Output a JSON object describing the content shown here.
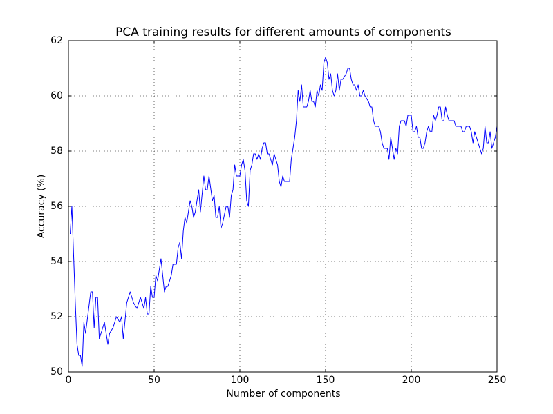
{
  "chart_data": {
    "type": "line",
    "title": "PCA training results for different amounts of components",
    "xlabel": "Number of components",
    "ylabel": "Accuracy (%)",
    "color": "#0000ff",
    "grid": true,
    "xlim": [
      0,
      250
    ],
    "xticks": [
      0,
      50,
      100,
      150,
      200,
      250
    ],
    "ylim": [
      50,
      62
    ],
    "yticks": [
      50,
      52,
      54,
      56,
      58,
      60,
      62
    ],
    "x": [
      1,
      2,
      4,
      5,
      6,
      7,
      8,
      9,
      10,
      12,
      13,
      14,
      15,
      16,
      17,
      18,
      19,
      21,
      22,
      23,
      24,
      26,
      28,
      30,
      31,
      32,
      34,
      36,
      38,
      40,
      42,
      44,
      45,
      46,
      47,
      48,
      49,
      50,
      51,
      52,
      54,
      56,
      57,
      58,
      60,
      61,
      63,
      64,
      65,
      66,
      67,
      68,
      69,
      71,
      72,
      73,
      74,
      76,
      77,
      79,
      80,
      81,
      82,
      84,
      85,
      86,
      87,
      88,
      89,
      90,
      92,
      93,
      94,
      95,
      96,
      97,
      98,
      100,
      101,
      102,
      103,
      104,
      105,
      106,
      107,
      108,
      109,
      110,
      111,
      112,
      113,
      114,
      115,
      116,
      117,
      119,
      120,
      122,
      123,
      124,
      125,
      126,
      129,
      130,
      132,
      133,
      134,
      135,
      136,
      137,
      139,
      140,
      141,
      142,
      143,
      144,
      145,
      146,
      147,
      148,
      149,
      150,
      151,
      152,
      153,
      154,
      155,
      156,
      157,
      158,
      159,
      160,
      162,
      163,
      164,
      165,
      166,
      167,
      168,
      169,
      170,
      171,
      172,
      173,
      175,
      176,
      177,
      178,
      179,
      181,
      182,
      183,
      184,
      186,
      187,
      188,
      189,
      190,
      191,
      192,
      193,
      194,
      196,
      197,
      198,
      200,
      201,
      202,
      203,
      204,
      205,
      206,
      207,
      208,
      209,
      210,
      211,
      212,
      213,
      214,
      215,
      216,
      217,
      218,
      219,
      220,
      221,
      222,
      225,
      226,
      229,
      230,
      231,
      232,
      234,
      235,
      236,
      237,
      238,
      239,
      240,
      241,
      242,
      243,
      244,
      245,
      246,
      247,
      248,
      249,
      250
    ],
    "values": [
      55.0,
      56.0,
      52.5,
      51.0,
      50.6,
      50.6,
      50.2,
      51.8,
      51.4,
      52.4,
      52.9,
      52.9,
      51.6,
      52.7,
      52.7,
      51.2,
      51.4,
      51.8,
      51.4,
      51.0,
      51.4,
      51.6,
      52.0,
      51.8,
      52.0,
      51.2,
      52.5,
      52.9,
      52.5,
      52.3,
      52.7,
      52.3,
      52.7,
      52.1,
      52.1,
      53.1,
      52.7,
      52.7,
      53.5,
      53.3,
      54.1,
      52.9,
      53.1,
      53.1,
      53.5,
      53.9,
      53.9,
      54.5,
      54.7,
      54.1,
      55.1,
      55.6,
      55.4,
      56.2,
      56.0,
      55.6,
      55.8,
      56.6,
      55.8,
      57.1,
      56.6,
      56.6,
      57.1,
      56.2,
      56.4,
      55.6,
      55.6,
      56.0,
      55.2,
      55.4,
      56.0,
      56.0,
      55.6,
      56.4,
      56.6,
      57.5,
      57.1,
      57.1,
      57.5,
      57.7,
      57.3,
      56.2,
      56.0,
      57.3,
      57.5,
      57.9,
      57.9,
      57.7,
      57.9,
      57.7,
      58.1,
      58.3,
      58.3,
      57.9,
      57.9,
      57.5,
      57.9,
      57.5,
      56.9,
      56.7,
      57.1,
      56.9,
      56.9,
      57.7,
      58.5,
      59.1,
      60.2,
      59.8,
      60.4,
      59.6,
      59.6,
      59.8,
      60.2,
      59.8,
      59.8,
      59.6,
      60.2,
      60.0,
      60.4,
      60.2,
      61.2,
      61.4,
      61.2,
      60.6,
      60.8,
      60.2,
      60.0,
      60.2,
      60.8,
      60.2,
      60.6,
      60.6,
      60.8,
      61.0,
      61.0,
      60.6,
      60.4,
      60.4,
      60.2,
      60.4,
      60.0,
      60.0,
      60.2,
      60.0,
      59.8,
      59.6,
      59.6,
      59.1,
      58.9,
      58.9,
      58.7,
      58.3,
      58.1,
      58.1,
      57.7,
      58.5,
      58.1,
      57.7,
      58.1,
      57.9,
      58.9,
      59.1,
      59.1,
      58.9,
      59.3,
      59.3,
      58.7,
      58.7,
      58.9,
      58.5,
      58.5,
      58.1,
      58.1,
      58.3,
      58.7,
      58.9,
      58.7,
      58.7,
      59.3,
      59.1,
      59.3,
      59.6,
      59.6,
      59.1,
      59.1,
      59.6,
      59.3,
      59.1,
      59.1,
      58.9,
      58.9,
      58.7,
      58.7,
      58.9,
      58.9,
      58.7,
      58.3,
      58.7,
      58.5,
      58.3,
      58.1,
      57.9,
      58.1,
      58.9,
      58.3,
      58.3,
      58.7,
      58.1,
      58.3,
      58.5,
      58.9
    ]
  }
}
